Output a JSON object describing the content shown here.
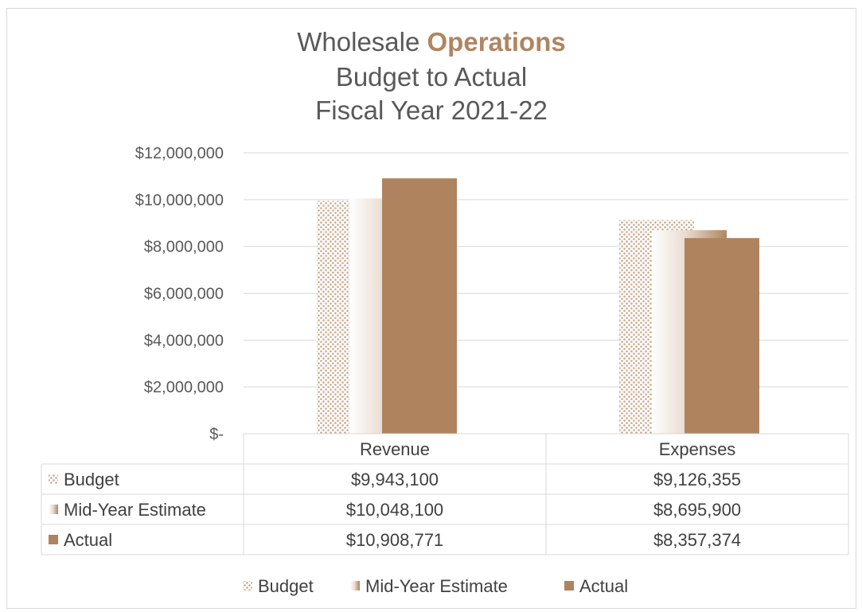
{
  "title": {
    "line1_prefix": "Wholesale ",
    "line1_accent": "Operations",
    "line2": "Budget to Actual",
    "line3": "Fiscal Year 2021-22",
    "accent_color": "#B08560"
  },
  "colors": {
    "bar": "#AF835E",
    "pattern_dot": "#C9A68A",
    "text": "#595959",
    "grid": "#D9D9D9"
  },
  "chart_data": {
    "type": "bar",
    "categories": [
      "Revenue",
      "Expenses"
    ],
    "series": [
      {
        "name": "Budget",
        "values": [
          9943100,
          9126355
        ],
        "style": "dotted-pattern"
      },
      {
        "name": "Mid-Year Estimate",
        "values": [
          10048100,
          8695900
        ],
        "style": "gradient"
      },
      {
        "name": "Actual",
        "values": [
          10908771,
          8357374
        ],
        "style": "solid"
      }
    ],
    "ylim": [
      0,
      12000000
    ],
    "yticks": [
      0,
      2000000,
      4000000,
      6000000,
      8000000,
      10000000,
      12000000
    ],
    "ytick_labels": [
      "$-",
      "$2,000,000",
      "$4,000,000",
      "$6,000,000",
      "$8,000,000",
      "$10,000,000",
      "$12,000,000"
    ],
    "grid": true,
    "legend_position": "bottom",
    "data_table": {
      "rows": [
        {
          "label": "Budget",
          "cells": [
            "$9,943,100",
            "$9,126,355"
          ]
        },
        {
          "label": "Mid-Year Estimate",
          "cells": [
            "$10,048,100",
            "$8,695,900"
          ]
        },
        {
          "label": "Actual",
          "cells": [
            "$10,908,771",
            "$8,357,374"
          ]
        }
      ]
    }
  }
}
